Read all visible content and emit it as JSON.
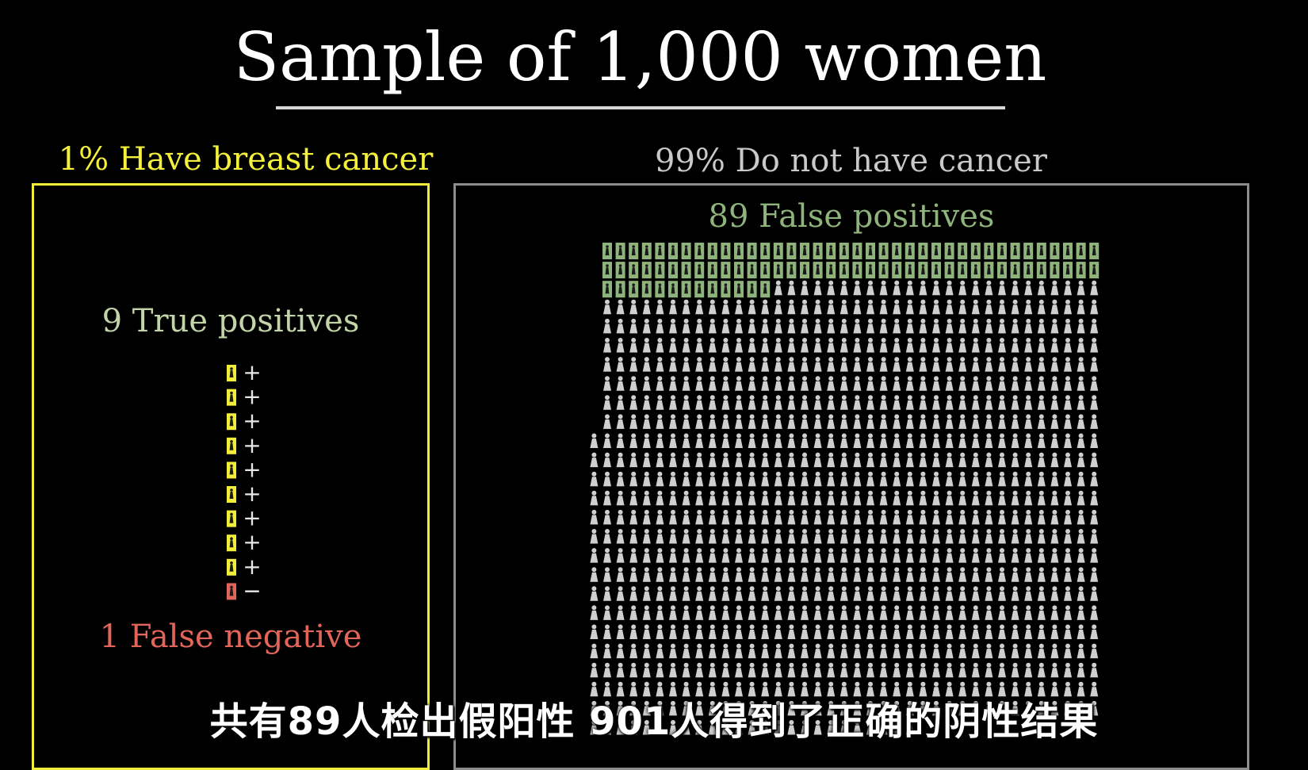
{
  "title": "Sample of 1,000 women",
  "left_group": {
    "label": "1% Have breast cancer",
    "true_positive_label": "9 True positives",
    "false_negative_label": "1 False negative",
    "true_positive_count": 9,
    "false_negative_count": 1,
    "positive_sign": "+",
    "negative_sign": "−"
  },
  "right_group": {
    "label": "99% Do not have cancer",
    "false_positive_label": "89 False positives",
    "false_positive_count": 89,
    "true_negative_count": 901,
    "total_count": 990
  },
  "subtitle_caption": "共有89人检出假阳性  901人得到了正确的阴性结果",
  "colors": {
    "background": "#000000",
    "cancer_accent": "#f2ec3a",
    "true_positive_text": "#c3d5a8",
    "false_negative_text": "#e2655a",
    "false_positive_text": "#8fb47b",
    "false_positive_fill": "#8fb47b",
    "person_icon": "#cfcfcf",
    "no_cancer_border": "#8c8c8c"
  },
  "icons": {
    "person": "person-icon",
    "highlighted_person": "highlighted-person-icon"
  }
}
